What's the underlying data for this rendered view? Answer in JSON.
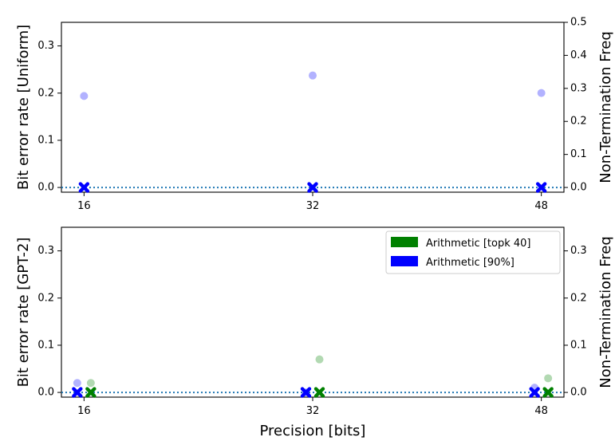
{
  "chart_data": [
    {
      "type": "scatter",
      "panel": "top",
      "ylabel": "Bit error rate [Uniform]",
      "y2label": "Non-Termination Freq",
      "xlabel": "",
      "x_categories": [
        16,
        32,
        48
      ],
      "ylim": [
        -0.01,
        0.35
      ],
      "y_ticks": [
        "0.0",
        "0.1",
        "0.2",
        "0.3"
      ],
      "y2lim": [
        -0.0143,
        0.5
      ],
      "y2_ticks": [
        "0.0",
        "0.1",
        "0.2",
        "0.3",
        "0.4",
        "0.5"
      ],
      "series": [
        {
          "color": "#0000ff",
          "offset": 0,
          "bit_error_rate": [
            0,
            0,
            0
          ],
          "non_termination_freq": [
            0.277,
            0.339,
            0.286
          ]
        }
      ],
      "reference_line": {
        "y": 0,
        "style": "dotted",
        "color": "#1f77b4"
      },
      "grid": false,
      "legend": null
    },
    {
      "type": "scatter",
      "panel": "bottom",
      "ylabel": "Bit error rate [GPT-2]",
      "y2label": "Non-Termination Freq",
      "xlabel": "Precision [bits]",
      "x_categories": [
        16,
        32,
        48
      ],
      "ylim": [
        -0.01,
        0.35
      ],
      "y_ticks": [
        "0.0",
        "0.1",
        "0.2",
        "0.3"
      ],
      "y2lim": [
        -0.01,
        0.35
      ],
      "y2_ticks": [
        "0.0",
        "0.1",
        "0.2",
        "0.3"
      ],
      "series": [
        {
          "name": "Arithmetic [topk 40]",
          "color": "#008000",
          "offset": 0.5,
          "bit_error_rate": [
            0,
            0,
            0
          ],
          "non_termination_freq": [
            0.02,
            0.07,
            0.03
          ]
        },
        {
          "name": "Arithmetic [90%]",
          "color": "#0000ff",
          "offset": -0.5,
          "bit_error_rate": [
            0,
            0,
            0
          ],
          "non_termination_freq": [
            0.02,
            0,
            0.01
          ]
        }
      ],
      "reference_line": {
        "y": 0,
        "style": "dotted",
        "color": "#1f77b4"
      },
      "grid": false,
      "legend": "top-right"
    }
  ]
}
